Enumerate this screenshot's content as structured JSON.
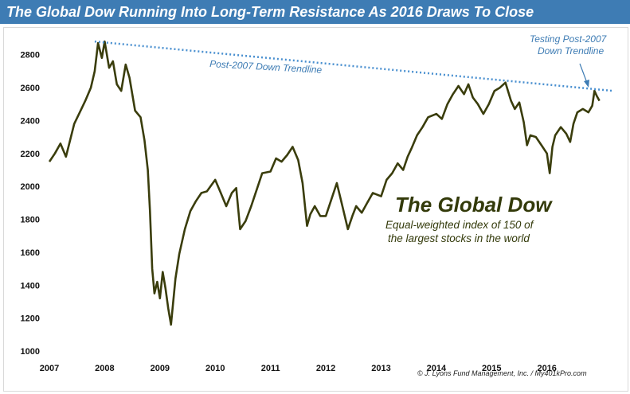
{
  "header": {
    "title": "The Global Dow Running Into Long-Term Resistance As 2016 Draws To Close"
  },
  "annotations": {
    "trendline_label": "Post-2007 Down Trendline",
    "testing_label_line1": "Testing Post-2007",
    "testing_label_line2": "Down Trendline",
    "index_name": "The Global Dow",
    "index_desc_line1": "Equal-weighted index of 150 of",
    "index_desc_line2": "the largest stocks in the world",
    "credit": "© J. Lyons Fund Management, Inc. / My401kPro.com"
  },
  "colors": {
    "title_bar": "#3e7cb4",
    "series": "#3a3d0c",
    "trendline": "#4a90d0",
    "annotation_text": "#3e7cb4"
  },
  "chart_data": {
    "type": "line",
    "title": "The Global Dow Running Into Long-Term Resistance As 2016 Draws To Close",
    "xlabel": "",
    "ylabel": "",
    "xlim": [
      2007.0,
      2017.2
    ],
    "ylim": [
      1000,
      2900
    ],
    "x_ticks": [
      "2007",
      "2008",
      "2009",
      "2010",
      "2011",
      "2012",
      "2013",
      "2014",
      "2015",
      "2016"
    ],
    "y_ticks": [
      1000,
      1200,
      1400,
      1600,
      1800,
      2000,
      2200,
      2400,
      2600,
      2800
    ],
    "grid": false,
    "series": [
      {
        "name": "The Global Dow",
        "x": [
          2007.0,
          2007.1,
          2007.2,
          2007.3,
          2007.45,
          2007.55,
          2007.65,
          2007.75,
          2007.82,
          2007.88,
          2007.95,
          2008.0,
          2008.08,
          2008.15,
          2008.22,
          2008.3,
          2008.38,
          2008.45,
          2008.55,
          2008.65,
          2008.72,
          2008.78,
          2008.82,
          2008.86,
          2008.9,
          2008.95,
          2009.0,
          2009.05,
          2009.1,
          2009.15,
          2009.2,
          2009.28,
          2009.35,
          2009.45,
          2009.55,
          2009.65,
          2009.75,
          2009.85,
          2010.0,
          2010.1,
          2010.2,
          2010.3,
          2010.38,
          2010.45,
          2010.55,
          2010.65,
          2010.75,
          2010.85,
          2011.0,
          2011.1,
          2011.2,
          2011.3,
          2011.4,
          2011.5,
          2011.58,
          2011.66,
          2011.72,
          2011.8,
          2011.9,
          2012.0,
          2012.1,
          2012.2,
          2012.3,
          2012.4,
          2012.48,
          2012.55,
          2012.65,
          2012.75,
          2012.85,
          2013.0,
          2013.1,
          2013.2,
          2013.3,
          2013.4,
          2013.48,
          2013.55,
          2013.65,
          2013.75,
          2013.85,
          2014.0,
          2014.1,
          2014.2,
          2014.3,
          2014.4,
          2014.5,
          2014.58,
          2014.66,
          2014.75,
          2014.85,
          2014.95,
          2015.05,
          2015.15,
          2015.25,
          2015.35,
          2015.42,
          2015.5,
          2015.58,
          2015.64,
          2015.7,
          2015.8,
          2015.9,
          2016.0,
          2016.05,
          2016.1,
          2016.15,
          2016.25,
          2016.35,
          2016.42,
          2016.48,
          2016.55,
          2016.65,
          2016.75,
          2016.82,
          2016.86,
          2016.9,
          2016.95
        ],
        "y": [
          2150,
          2200,
          2260,
          2180,
          2380,
          2450,
          2520,
          2600,
          2700,
          2870,
          2780,
          2880,
          2720,
          2760,
          2620,
          2580,
          2740,
          2660,
          2460,
          2420,
          2280,
          2100,
          1850,
          1500,
          1350,
          1420,
          1320,
          1480,
          1380,
          1260,
          1160,
          1440,
          1590,
          1740,
          1850,
          1910,
          1960,
          1970,
          2040,
          1960,
          1880,
          1960,
          1990,
          1740,
          1790,
          1880,
          1980,
          2080,
          2090,
          2170,
          2150,
          2190,
          2240,
          2160,
          2020,
          1760,
          1830,
          1880,
          1820,
          1820,
          1920,
          2020,
          1880,
          1740,
          1820,
          1880,
          1840,
          1900,
          1960,
          1940,
          2040,
          2080,
          2140,
          2100,
          2180,
          2230,
          2310,
          2360,
          2420,
          2440,
          2410,
          2500,
          2560,
          2610,
          2560,
          2620,
          2540,
          2500,
          2440,
          2500,
          2580,
          2600,
          2630,
          2520,
          2470,
          2510,
          2390,
          2250,
          2310,
          2300,
          2250,
          2200,
          2080,
          2240,
          2310,
          2360,
          2320,
          2270,
          2380,
          2450,
          2470,
          2450,
          2490,
          2580,
          2550,
          2520
        ]
      },
      {
        "name": "Post-2007 Down Trendline",
        "x": [
          2007.82,
          2017.2
        ],
        "y": [
          2880,
          2580
        ]
      }
    ]
  }
}
